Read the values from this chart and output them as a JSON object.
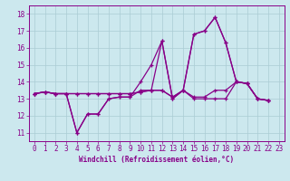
{
  "xlabel": "Windchill (Refroidissement éolien,°C)",
  "background_color": "#cce8ee",
  "line_color": "#880088",
  "grid_color": "#aaccd4",
  "x_ticks": [
    0,
    1,
    2,
    3,
    4,
    5,
    6,
    7,
    8,
    9,
    10,
    11,
    12,
    13,
    14,
    15,
    16,
    17,
    18,
    19,
    20,
    21,
    22,
    23
  ],
  "y_ticks": [
    11,
    12,
    13,
    14,
    15,
    16,
    17,
    18
  ],
  "ylim": [
    10.5,
    18.5
  ],
  "xlim": [
    -0.5,
    23.5
  ],
  "series": [
    {
      "x": [
        0,
        1,
        2,
        3,
        4,
        5,
        6,
        7,
        8,
        9,
        10,
        11,
        12,
        13,
        14,
        15,
        16,
        17,
        18,
        19,
        20,
        21,
        22
      ],
      "y": [
        13.3,
        13.4,
        13.3,
        13.3,
        11.0,
        12.1,
        12.1,
        13.0,
        13.1,
        13.1,
        13.5,
        13.5,
        16.4,
        13.0,
        13.5,
        13.0,
        13.0,
        13.0,
        13.0,
        14.0,
        13.9,
        13.0,
        12.9
      ]
    },
    {
      "x": [
        0,
        1,
        2,
        3,
        4,
        5,
        6,
        7,
        8,
        9,
        10,
        11,
        12,
        13,
        14,
        15,
        16,
        17,
        18,
        19,
        20,
        21,
        22
      ],
      "y": [
        13.3,
        13.4,
        13.3,
        13.3,
        11.0,
        12.1,
        12.1,
        13.0,
        13.1,
        13.1,
        14.0,
        15.0,
        16.4,
        13.0,
        13.5,
        16.8,
        17.0,
        17.8,
        16.3,
        14.0,
        13.9,
        13.0,
        12.9
      ]
    },
    {
      "x": [
        0,
        1,
        2,
        3,
        4,
        5,
        6,
        7,
        8,
        9,
        10,
        11,
        12,
        13,
        14,
        15,
        16,
        17,
        18,
        19,
        20,
        21,
        22
      ],
      "y": [
        13.3,
        13.4,
        13.3,
        13.3,
        13.3,
        13.3,
        13.3,
        13.3,
        13.3,
        13.3,
        13.4,
        13.5,
        13.5,
        13.1,
        13.5,
        13.1,
        13.1,
        13.5,
        13.5,
        14.0,
        13.9,
        13.0,
        12.9
      ]
    },
    {
      "x": [
        0,
        1,
        2,
        3,
        4,
        5,
        6,
        7,
        8,
        9,
        10,
        11,
        12,
        13,
        14,
        15,
        16,
        17,
        18,
        19,
        20,
        21,
        22
      ],
      "y": [
        13.3,
        13.4,
        13.3,
        13.3,
        13.3,
        13.3,
        13.3,
        13.3,
        13.3,
        13.3,
        13.4,
        13.5,
        13.5,
        13.1,
        13.5,
        16.8,
        17.0,
        17.8,
        16.3,
        14.0,
        13.9,
        13.0,
        12.9
      ]
    }
  ]
}
